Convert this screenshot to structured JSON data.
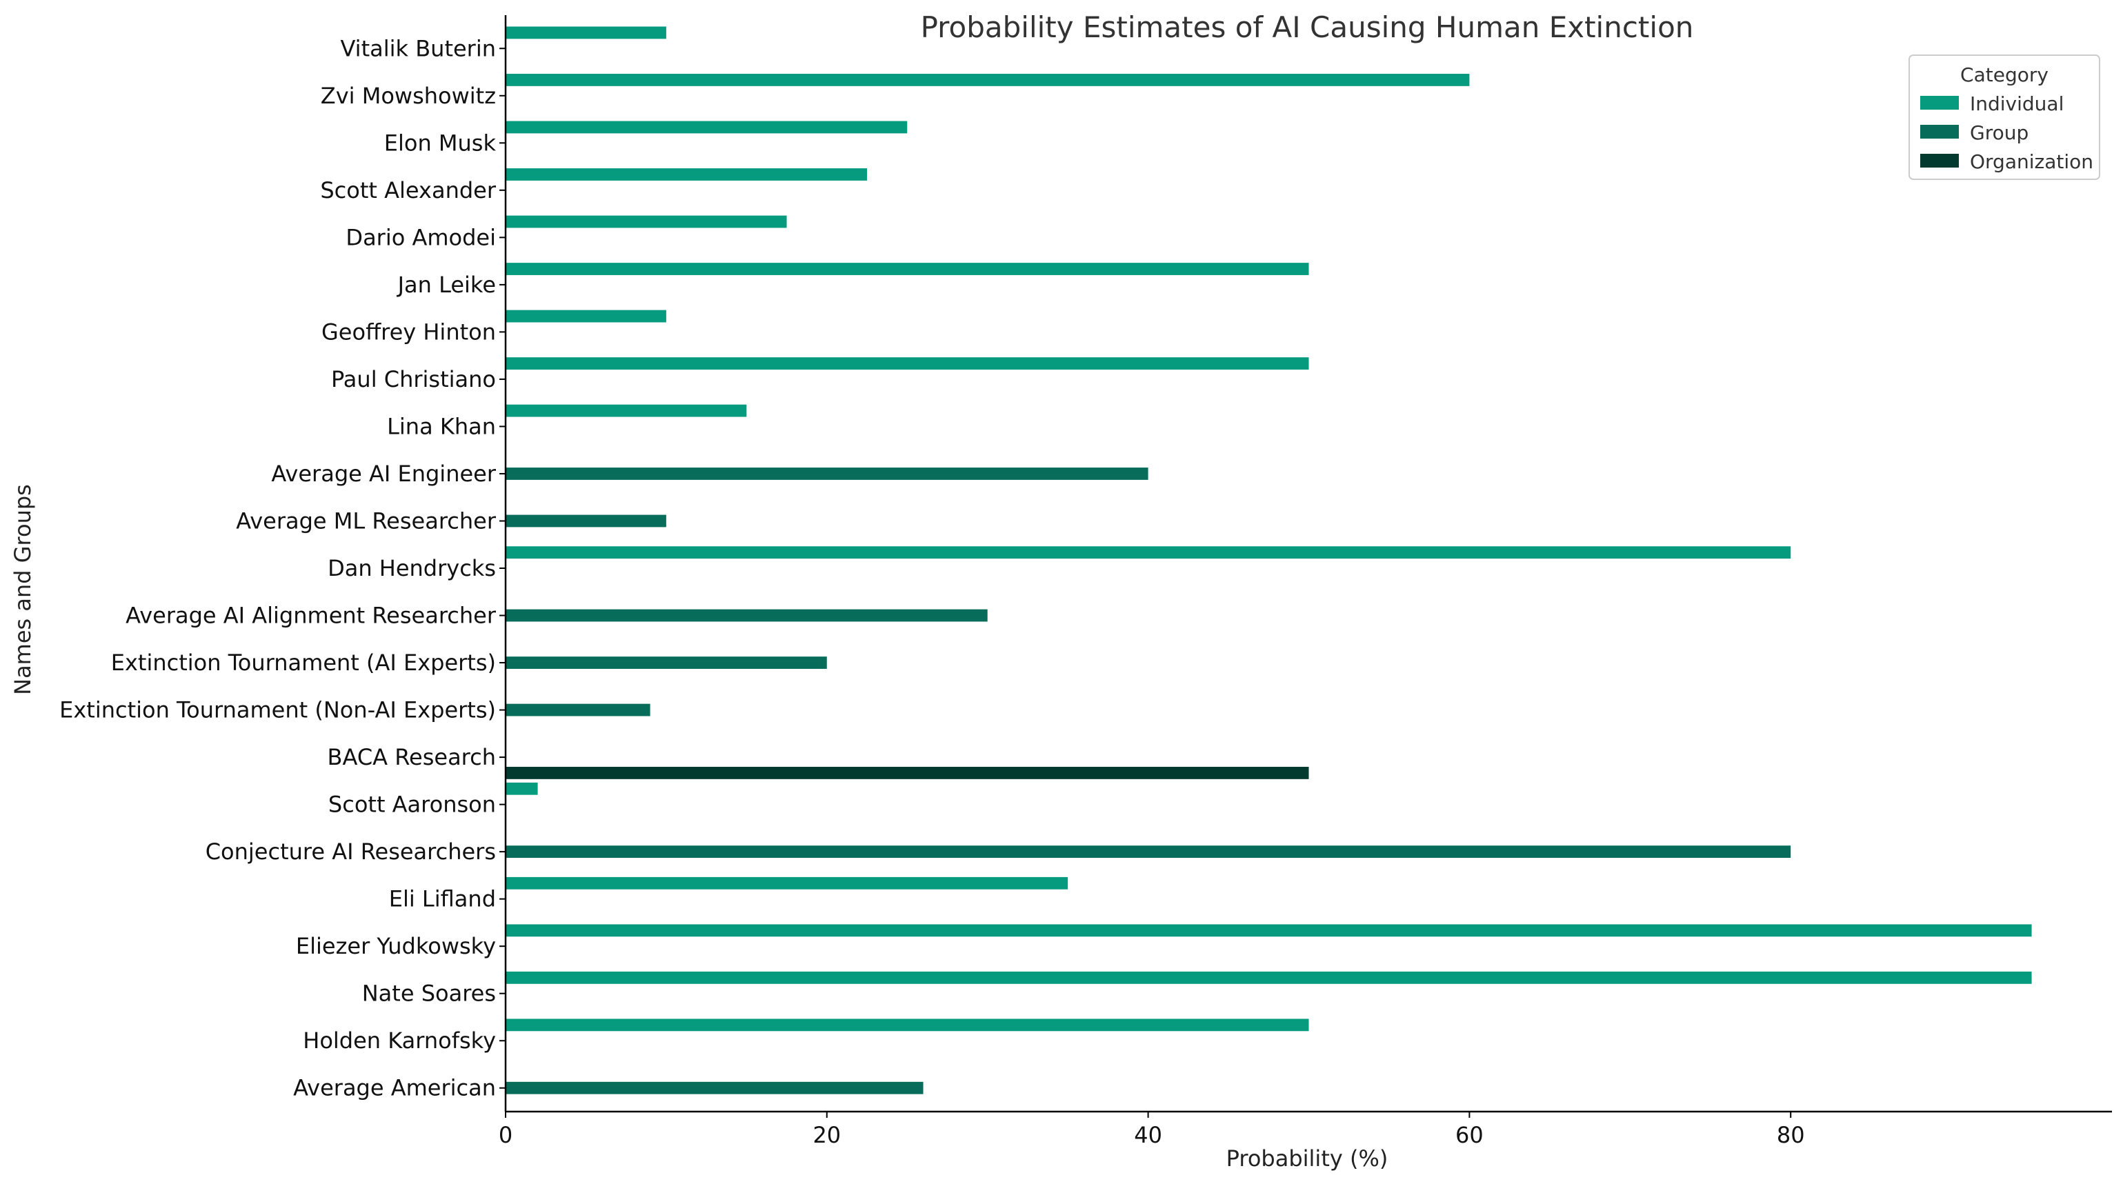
{
  "chart_data": {
    "type": "bar",
    "orientation": "horizontal",
    "title": "Probability Estimates of AI Causing Human Extinction",
    "xlabel": "Probability (%)",
    "ylabel": "Names and Groups",
    "xlim": [
      0,
      100
    ],
    "xticks": [
      0,
      20,
      40,
      60,
      80
    ],
    "grid": false,
    "legend": {
      "title": "Category",
      "placement": "top-right",
      "entries": [
        {
          "name": "Individual",
          "color": "#069a7e"
        },
        {
          "name": "Group",
          "color": "#076d5a"
        },
        {
          "name": "Organization",
          "color": "#023a30"
        }
      ]
    },
    "series_order": [
      "Individual",
      "Group",
      "Organization"
    ],
    "categories": [
      "Vitalik Buterin",
      "Zvi Mowshowitz",
      "Elon Musk",
      "Scott Alexander",
      "Dario Amodei",
      "Jan Leike",
      "Geoffrey Hinton",
      "Paul Christiano",
      "Lina Khan",
      "Average AI Engineer",
      "Average ML Researcher",
      "Dan Hendrycks",
      "Average AI Alignment Researcher",
      "Extinction Tournament (AI Experts)",
      "Extinction Tournament (Non-AI Experts)",
      "BACA Research",
      "Scott Aaronson",
      "Conjecture AI Researchers",
      "Eli Lifland",
      "Eliezer Yudkowsky",
      "Nate Soares",
      "Holden Karnofsky",
      "Average American"
    ],
    "values": [
      10,
      60,
      25,
      22.5,
      17.5,
      50,
      10,
      50,
      15,
      40,
      10,
      80,
      30,
      20,
      9,
      50,
      2,
      80,
      35,
      95,
      95,
      50,
      26
    ],
    "category_types": [
      "Individual",
      "Individual",
      "Individual",
      "Individual",
      "Individual",
      "Individual",
      "Individual",
      "Individual",
      "Individual",
      "Group",
      "Group",
      "Individual",
      "Group",
      "Group",
      "Group",
      "Organization",
      "Individual",
      "Group",
      "Individual",
      "Individual",
      "Individual",
      "Individual",
      "Group"
    ]
  }
}
